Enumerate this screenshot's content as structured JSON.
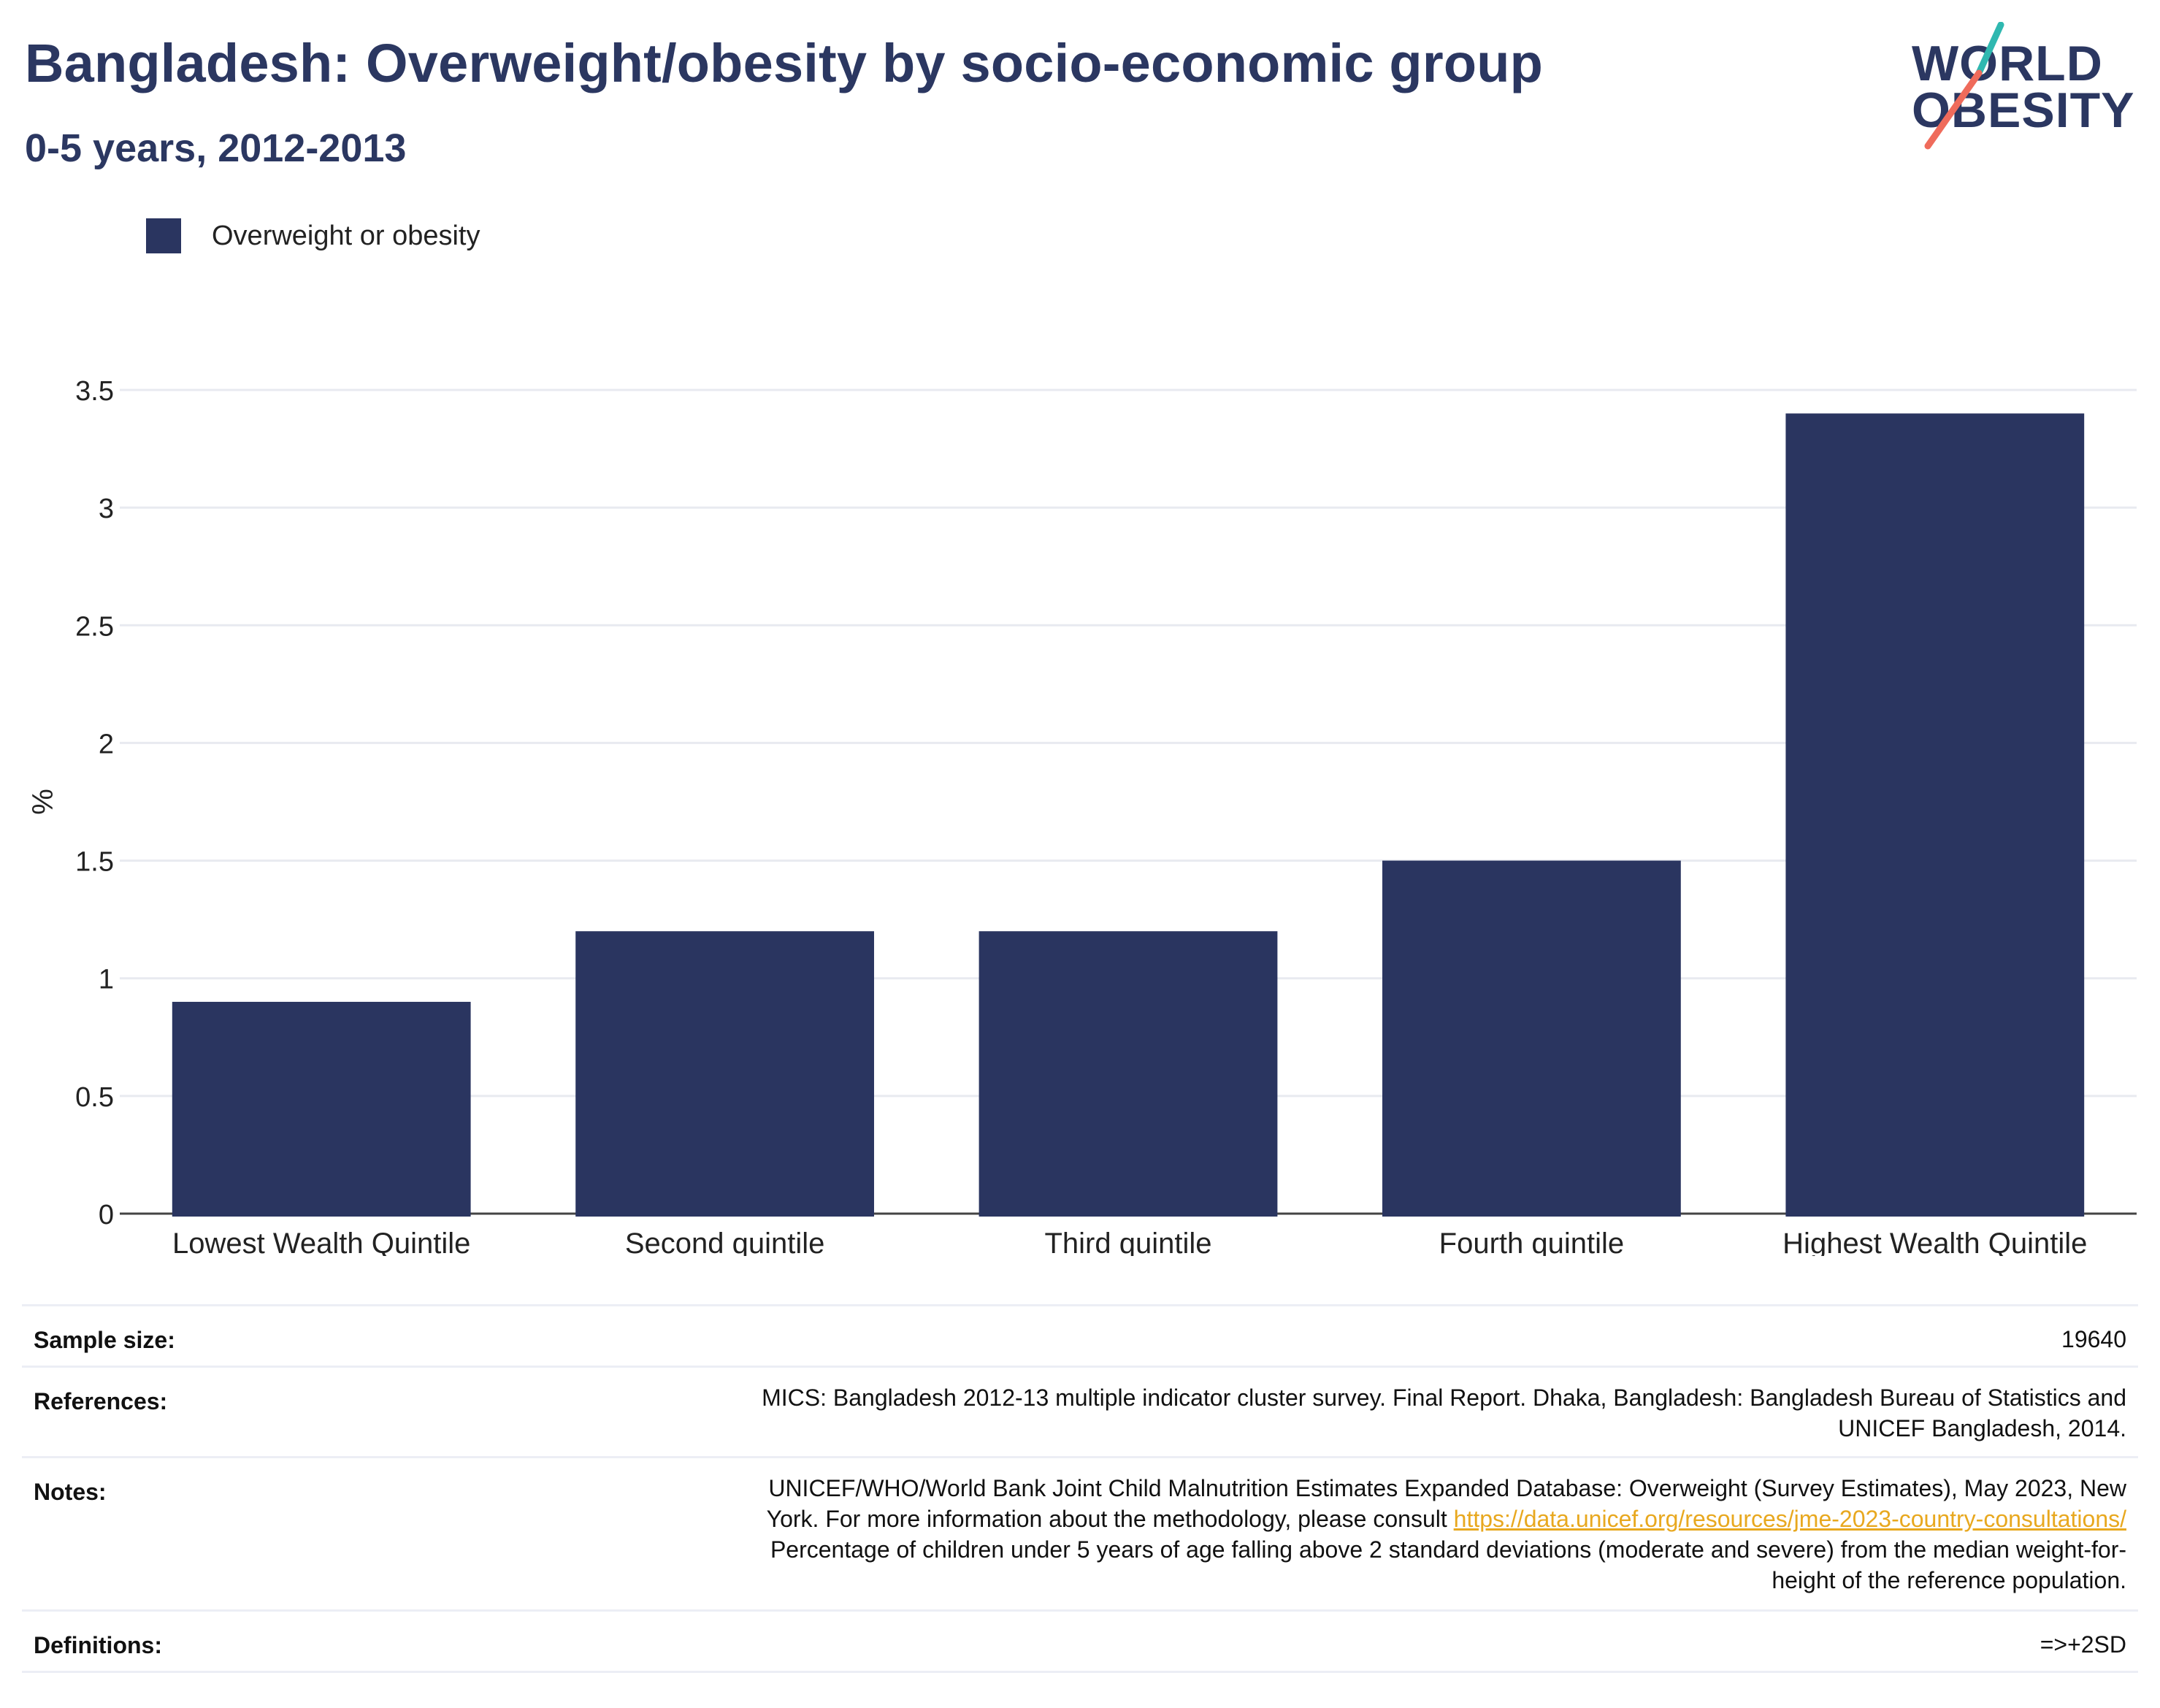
{
  "title": "Bangladesh: Overweight/obesity by socio-economic group",
  "subtitle": "0-5 years, 2012-2013",
  "logo": {
    "line1": "WORLD",
    "line2": "OBESITY"
  },
  "legend": {
    "label": "Overweight or obesity",
    "color": "#2a3560"
  },
  "chart_data": {
    "type": "bar",
    "categories": [
      "Lowest Wealth Quintile",
      "Second quintile",
      "Third quintile",
      "Fourth quintile",
      "Highest Wealth Quintile"
    ],
    "series": [
      {
        "name": "Overweight or obesity",
        "values": [
          0.9,
          1.2,
          1.2,
          1.5,
          3.4
        ],
        "color": "#2a3560"
      }
    ],
    "ylabel": "%",
    "xlabel": "",
    "ylim": [
      0,
      3.5
    ],
    "yticks": [
      0,
      0.5,
      1,
      1.5,
      2,
      2.5,
      3,
      3.5
    ],
    "ytick_labels": [
      "0",
      "0.5",
      "1",
      "1.5",
      "2",
      "2.5",
      "3",
      "3.5"
    ],
    "grid": true,
    "legend_position": "top-left"
  },
  "info": {
    "sample_size": {
      "key": "Sample size:",
      "value": "19640"
    },
    "references": {
      "key": "References:",
      "line1": "MICS: Bangladesh 2012-13 multiple indicator cluster survey. Final Report. Dhaka, Bangladesh: Bangladesh Bureau of Statistics and",
      "line2": "UNICEF Bangladesh, 2014."
    },
    "notes": {
      "key": "Notes:",
      "line1": "UNICEF/WHO/World Bank Joint Child Malnutrition Estimates Expanded Database: Overweight (Survey Estimates), May 2023, New",
      "line2_prefix": "York. For more information about the methodology, please consult ",
      "link": "https://data.unicef.org/resources/jme-2023-country-consultations/",
      "line3": "Percentage of children under 5 years of age falling above 2 standard deviations (moderate and severe) from the median weight-for-",
      "line4": "height of the reference population."
    },
    "definitions": {
      "key": "Definitions:",
      "value": "=>+2SD"
    }
  },
  "colors": {
    "title": "#2b3761",
    "bar": "#2a3560",
    "grid": "#e8eaf0",
    "axis": "#444444",
    "link": "#e8a81f",
    "logo_teal": "#2fb8b0",
    "logo_coral": "#ef6b5b"
  }
}
